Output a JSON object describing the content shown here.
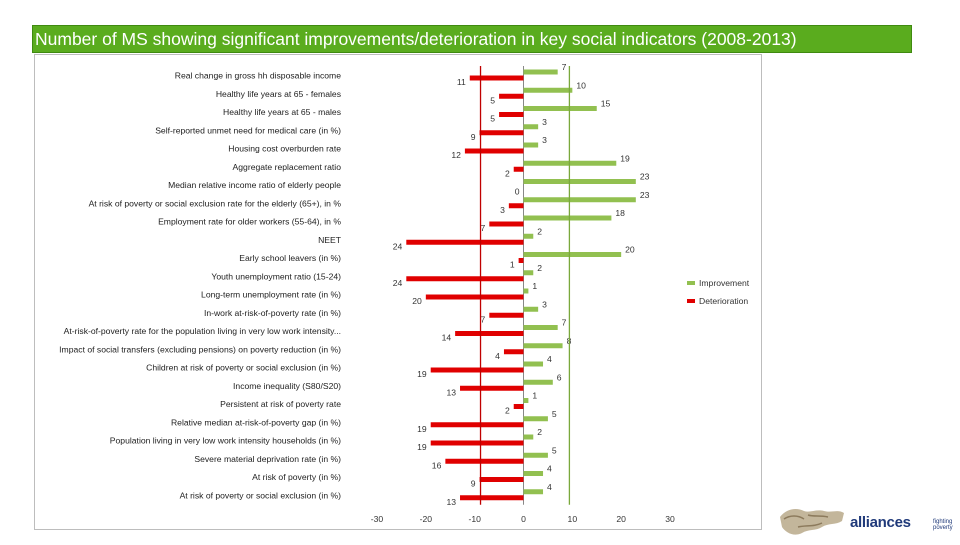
{
  "page": {
    "title": "Number of MS showing significant improvements/deterioration in key social indicators (2008-2013)"
  },
  "logo": {
    "word": "alliances",
    "tagline": "fighting poverty"
  },
  "colors": {
    "title_bg": "#5aac1e",
    "improvement": "#92c050",
    "deterioration": "#e00000",
    "ref_line_green": "#7aa83c",
    "ref_line_red": "#c00000"
  },
  "chart_data": {
    "type": "bar",
    "orientation": "horizontal",
    "title": "Number of MS showing significant improvements/deterioration in key social indicators (2008-2013)",
    "categories": [
      "Real change in gross hh disposable income",
      "Healthy life years at 65 - females",
      "Healthy life years at 65 - males",
      "Self-reported unmet need for medical care (in %)",
      "Housing cost overburden rate",
      "Aggregate replacement ratio",
      "Median relative income ratio of elderly people",
      "At risk of poverty or social exclusion rate for the elderly (65+), in %",
      "Employment rate for older workers (55-64), in %",
      "NEET",
      "Early school leavers (in %)",
      "Youth unemployment ratio (15-24)",
      "Long-term unemployment rate (in %)",
      "In-work at-risk-of-poverty rate (in %)",
      "At-risk-of-poverty rate for the population living in very low work intensity...",
      "Impact of social transfers (excluding pensions) on poverty reduction (in %)",
      "Children at risk of poverty or social exclusion (in %)",
      "Income inequality (S80/S20)",
      "Persistent at risk of poverty rate",
      "Relative median at-risk-of-poverty gap (in %)",
      "Population living in very low work intensity households (in %)",
      "Severe material deprivation rate (in %)",
      "At risk of poverty (in %)",
      "At risk of poverty or social exclusion (in %)"
    ],
    "series": [
      {
        "name": "Improvement",
        "values": [
          7,
          10,
          15,
          3,
          3,
          19,
          23,
          23,
          18,
          2,
          20,
          2,
          1,
          3,
          7,
          8,
          4,
          6,
          1,
          5,
          2,
          5,
          4,
          4
        ],
        "labels": [
          "7",
          "10",
          "15",
          "3",
          "3",
          "19",
          "23",
          "23",
          "18",
          "2",
          "20",
          "2",
          "1",
          "3",
          "7",
          "8",
          "4",
          "6",
          "1",
          "5",
          "2",
          "5",
          "4",
          "4"
        ]
      },
      {
        "name": "Deterioration",
        "values": [
          -11,
          -5,
          -5,
          -9,
          -12,
          -2,
          0,
          -3,
          -7,
          -24,
          -1,
          -24,
          -20,
          -7,
          -14,
          -4,
          -19,
          -13,
          -2,
          -19,
          -19,
          -16,
          -9,
          -13
        ],
        "labels": [
          "11",
          "5",
          "5",
          "9",
          "12",
          "2",
          "0",
          "3",
          "7",
          "24",
          "1",
          "24",
          "20",
          "7",
          "14",
          "4",
          "19",
          "13",
          "2",
          "19",
          "19",
          "16",
          "9",
          "13"
        ]
      }
    ],
    "reference_lines": [
      {
        "name": "improvement-average",
        "value": 9.4
      },
      {
        "name": "deterioration-average",
        "value": -8.8
      }
    ],
    "xlim": [
      -30,
      30
    ],
    "xticks": [
      "-30",
      "-20",
      "-10",
      "0",
      "10",
      "20",
      "30"
    ],
    "xlabel": "",
    "ylabel": "",
    "legend": [
      "Improvement",
      "Deterioration"
    ],
    "legend_position": "right"
  }
}
